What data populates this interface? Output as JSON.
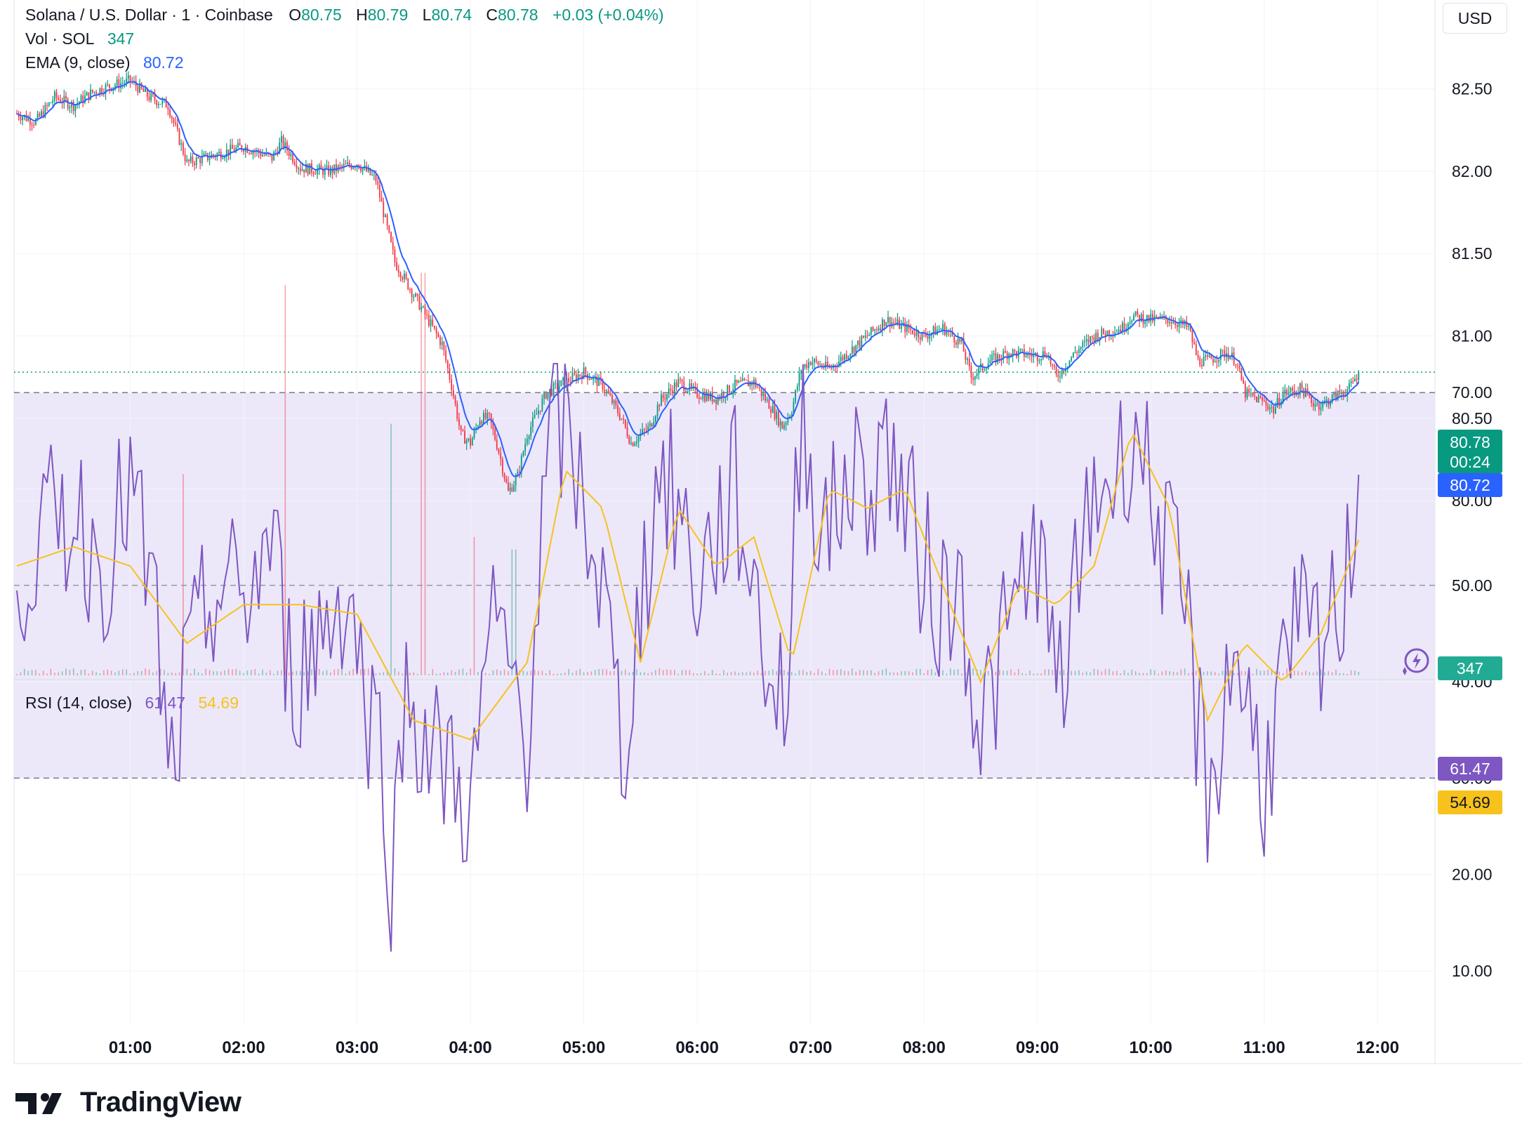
{
  "header": {
    "symbol": "Solana / U.S. Dollar · 1 · Coinbase",
    "o_label": "O",
    "o_value": "80.75",
    "h_label": "H",
    "h_value": "80.79",
    "l_label": "L",
    "l_value": "80.74",
    "c_label": "C",
    "c_value": "80.78",
    "change": "+0.03 (+0.04%)"
  },
  "volume_legend": {
    "label": "Vol · SOL",
    "value": "347"
  },
  "ema_legend": {
    "label": "EMA (9, close)",
    "value": "80.72"
  },
  "rsi_legend": {
    "label": "RSI (14, close)",
    "value": "61.47",
    "ma_value": "54.69"
  },
  "currency": "USD",
  "price_tags": {
    "last_price": "80.78",
    "countdown": "00:24",
    "ema": "80.72",
    "volume": "347",
    "rsi": "61.47",
    "rsi_ma": "54.69"
  },
  "brand": "TradingView",
  "colors": {
    "up": "#089981",
    "down": "#f23645",
    "ema": "#2962ff",
    "rsi": "#7e57c2",
    "rsi_ma": "#f7c21c",
    "rsi_band": "#ece8f9"
  },
  "chart_data": [
    {
      "type": "candlestick",
      "title": "Solana / U.S. Dollar · 1 · Coinbase",
      "x_ticks": [
        "01:00",
        "02:00",
        "03:00",
        "04:00",
        "05:00",
        "06:00",
        "07:00",
        "08:00",
        "09:00",
        "10:00",
        "11:00",
        "12:00"
      ],
      "y_ticks": [
        "80.00",
        "80.50",
        "81.00",
        "81.50",
        "82.00",
        "82.50"
      ],
      "ylim": [
        79.65,
        82.9
      ],
      "grid": true,
      "last_price": 80.78,
      "price_path": [
        [
          "00:00",
          82.35
        ],
        [
          "00:10",
          82.3
        ],
        [
          "00:20",
          82.45
        ],
        [
          "00:30",
          82.4
        ],
        [
          "00:40",
          82.48
        ],
        [
          "00:50",
          82.52
        ],
        [
          "01:00",
          82.55
        ],
        [
          "01:10",
          82.45
        ],
        [
          "01:20",
          82.4
        ],
        [
          "01:30",
          82.05
        ],
        [
          "01:45",
          82.1
        ],
        [
          "02:00",
          82.15
        ],
        [
          "02:15",
          82.08
        ],
        [
          "02:20",
          82.18
        ],
        [
          "02:30",
          82.02
        ],
        [
          "02:45",
          82.0
        ],
        [
          "03:00",
          82.05
        ],
        [
          "03:05",
          82.0
        ],
        [
          "03:10",
          81.95
        ],
        [
          "03:15",
          81.7
        ],
        [
          "03:20",
          81.45
        ],
        [
          "03:25",
          81.35
        ],
        [
          "03:30",
          81.25
        ],
        [
          "03:40",
          81.05
        ],
        [
          "03:45",
          80.95
        ],
        [
          "03:50",
          80.7
        ],
        [
          "03:55",
          80.4
        ],
        [
          "04:00",
          80.35
        ],
        [
          "04:05",
          80.5
        ],
        [
          "04:10",
          80.5
        ],
        [
          "04:15",
          80.3
        ],
        [
          "04:20",
          80.05
        ],
        [
          "04:25",
          80.15
        ],
        [
          "04:30",
          80.4
        ],
        [
          "04:40",
          80.65
        ],
        [
          "04:50",
          80.72
        ],
        [
          "05:00",
          80.78
        ],
        [
          "05:10",
          80.7
        ],
        [
          "05:20",
          80.5
        ],
        [
          "05:25",
          80.35
        ],
        [
          "05:35",
          80.45
        ],
        [
          "05:40",
          80.6
        ],
        [
          "05:50",
          80.72
        ],
        [
          "06:00",
          80.65
        ],
        [
          "06:10",
          80.62
        ],
        [
          "06:20",
          80.7
        ],
        [
          "06:30",
          80.72
        ],
        [
          "06:40",
          80.55
        ],
        [
          "06:45",
          80.45
        ],
        [
          "06:50",
          80.55
        ],
        [
          "06:55",
          80.8
        ],
        [
          "07:00",
          80.85
        ],
        [
          "07:10",
          80.8
        ],
        [
          "07:20",
          80.9
        ],
        [
          "07:30",
          81.0
        ],
        [
          "07:40",
          81.1
        ],
        [
          "07:50",
          81.05
        ],
        [
          "08:00",
          81.0
        ],
        [
          "08:10",
          81.05
        ],
        [
          "08:20",
          80.95
        ],
        [
          "08:25",
          80.75
        ],
        [
          "08:35",
          80.85
        ],
        [
          "08:45",
          80.9
        ],
        [
          "09:00",
          80.88
        ],
        [
          "09:05",
          80.9
        ],
        [
          "09:10",
          80.75
        ],
        [
          "09:20",
          80.9
        ],
        [
          "09:30",
          81.0
        ],
        [
          "09:45",
          81.05
        ],
        [
          "09:50",
          81.12
        ],
        [
          "10:00",
          81.1
        ],
        [
          "10:10",
          81.1
        ],
        [
          "10:20",
          81.05
        ],
        [
          "10:25",
          80.85
        ],
        [
          "10:30",
          80.85
        ],
        [
          "10:40",
          80.9
        ],
        [
          "10:45",
          80.85
        ],
        [
          "10:50",
          80.65
        ],
        [
          "11:00",
          80.6
        ],
        [
          "11:05",
          80.55
        ],
        [
          "11:10",
          80.65
        ],
        [
          "11:20",
          80.68
        ],
        [
          "11:25",
          80.6
        ],
        [
          "11:30",
          80.58
        ],
        [
          "11:40",
          80.65
        ],
        [
          "11:45",
          80.68
        ],
        [
          "11:50",
          80.78
        ]
      ],
      "volume": {
        "last": 347,
        "spikes": [
          [
            "01:28",
            0.32
          ],
          [
            "02:22",
            0.62
          ],
          [
            "03:18",
            0.4
          ],
          [
            "03:35",
            0.64
          ],
          [
            "04:02",
            0.22
          ],
          [
            "04:23",
            0.2
          ]
        ]
      },
      "ema_period": 9,
      "ema_last": 80.72
    },
    {
      "type": "line",
      "title": "RSI (14, close)",
      "y_ticks": [
        "10.00",
        "20.00",
        "30.00",
        "40.00",
        "50.00",
        "60.00",
        "70.00"
      ],
      "ylim": [
        7,
        75
      ],
      "band": [
        30,
        70
      ],
      "grid": true,
      "series": [
        {
          "name": "RSI",
          "path": [
            [
              "00:00",
              52
            ],
            [
              "00:15",
              55
            ],
            [
              "00:30",
              58
            ],
            [
              "00:45",
              52
            ],
            [
              "01:00",
              60
            ],
            [
              "01:15",
              45
            ],
            [
              "01:20",
              28
            ],
            [
              "01:30",
              40
            ],
            [
              "01:45",
              50
            ],
            [
              "02:00",
              48
            ],
            [
              "02:15",
              55
            ],
            [
              "02:25",
              40
            ],
            [
              "02:40",
              45
            ],
            [
              "02:55",
              50
            ],
            [
              "03:05",
              38
            ],
            [
              "03:15",
              32
            ],
            [
              "03:18",
              15
            ],
            [
              "03:25",
              40
            ],
            [
              "03:40",
              32
            ],
            [
              "03:55",
              30
            ],
            [
              "04:00",
              25
            ],
            [
              "04:10",
              45
            ],
            [
              "04:20",
              42
            ],
            [
              "04:30",
              35
            ],
            [
              "04:40",
              60
            ],
            [
              "04:45",
              68
            ],
            [
              "04:55",
              62
            ],
            [
              "05:05",
              55
            ],
            [
              "05:15",
              42
            ],
            [
              "05:20",
              32
            ],
            [
              "05:30",
              48
            ],
            [
              "05:40",
              62
            ],
            [
              "05:50",
              58
            ],
            [
              "06:00",
              50
            ],
            [
              "06:10",
              55
            ],
            [
              "06:20",
              60
            ],
            [
              "06:30",
              50
            ],
            [
              "06:40",
              40
            ],
            [
              "06:48",
              38
            ],
            [
              "06:55",
              70
            ],
            [
              "07:00",
              62
            ],
            [
              "07:10",
              55
            ],
            [
              "07:20",
              62
            ],
            [
              "07:30",
              60
            ],
            [
              "07:40",
              65
            ],
            [
              "07:50",
              58
            ],
            [
              "08:00",
              52
            ],
            [
              "08:10",
              48
            ],
            [
              "08:20",
              50
            ],
            [
              "08:30",
              35
            ],
            [
              "08:45",
              45
            ],
            [
              "09:00",
              55
            ],
            [
              "09:10",
              38
            ],
            [
              "09:20",
              48
            ],
            [
              "09:30",
              60
            ],
            [
              "09:45",
              62
            ],
            [
              "09:50",
              68
            ],
            [
              "10:00",
              60
            ],
            [
              "10:10",
              52
            ],
            [
              "10:20",
              45
            ],
            [
              "10:25",
              35
            ],
            [
              "10:30",
              28
            ],
            [
              "10:40",
              38
            ],
            [
              "10:45",
              45
            ],
            [
              "10:50",
              38
            ],
            [
              "11:00",
              30
            ],
            [
              "11:10",
              40
            ],
            [
              "11:20",
              45
            ],
            [
              "11:30",
              42
            ],
            [
              "11:40",
              48
            ],
            [
              "11:45",
              52
            ],
            [
              "11:50",
              61.47
            ]
          ]
        },
        {
          "name": "RSI-based MA",
          "path": [
            [
              "00:00",
              52
            ],
            [
              "00:30",
              54
            ],
            [
              "01:00",
              52
            ],
            [
              "01:30",
              44
            ],
            [
              "02:00",
              48
            ],
            [
              "02:30",
              48
            ],
            [
              "03:00",
              47
            ],
            [
              "03:30",
              36
            ],
            [
              "04:00",
              34
            ],
            [
              "04:30",
              42
            ],
            [
              "04:50",
              62
            ],
            [
              "05:10",
              58
            ],
            [
              "05:30",
              42
            ],
            [
              "05:50",
              58
            ],
            [
              "06:10",
              52
            ],
            [
              "06:30",
              55
            ],
            [
              "06:50",
              42
            ],
            [
              "07:10",
              60
            ],
            [
              "07:30",
              58
            ],
            [
              "07:50",
              60
            ],
            [
              "08:10",
              50
            ],
            [
              "08:30",
              40
            ],
            [
              "08:50",
              50
            ],
            [
              "09:10",
              48
            ],
            [
              "09:30",
              52
            ],
            [
              "09:50",
              66
            ],
            [
              "10:10",
              58
            ],
            [
              "10:30",
              36
            ],
            [
              "10:50",
              44
            ],
            [
              "11:10",
              40
            ],
            [
              "11:30",
              45
            ],
            [
              "11:50",
              54.69
            ]
          ]
        }
      ]
    }
  ]
}
